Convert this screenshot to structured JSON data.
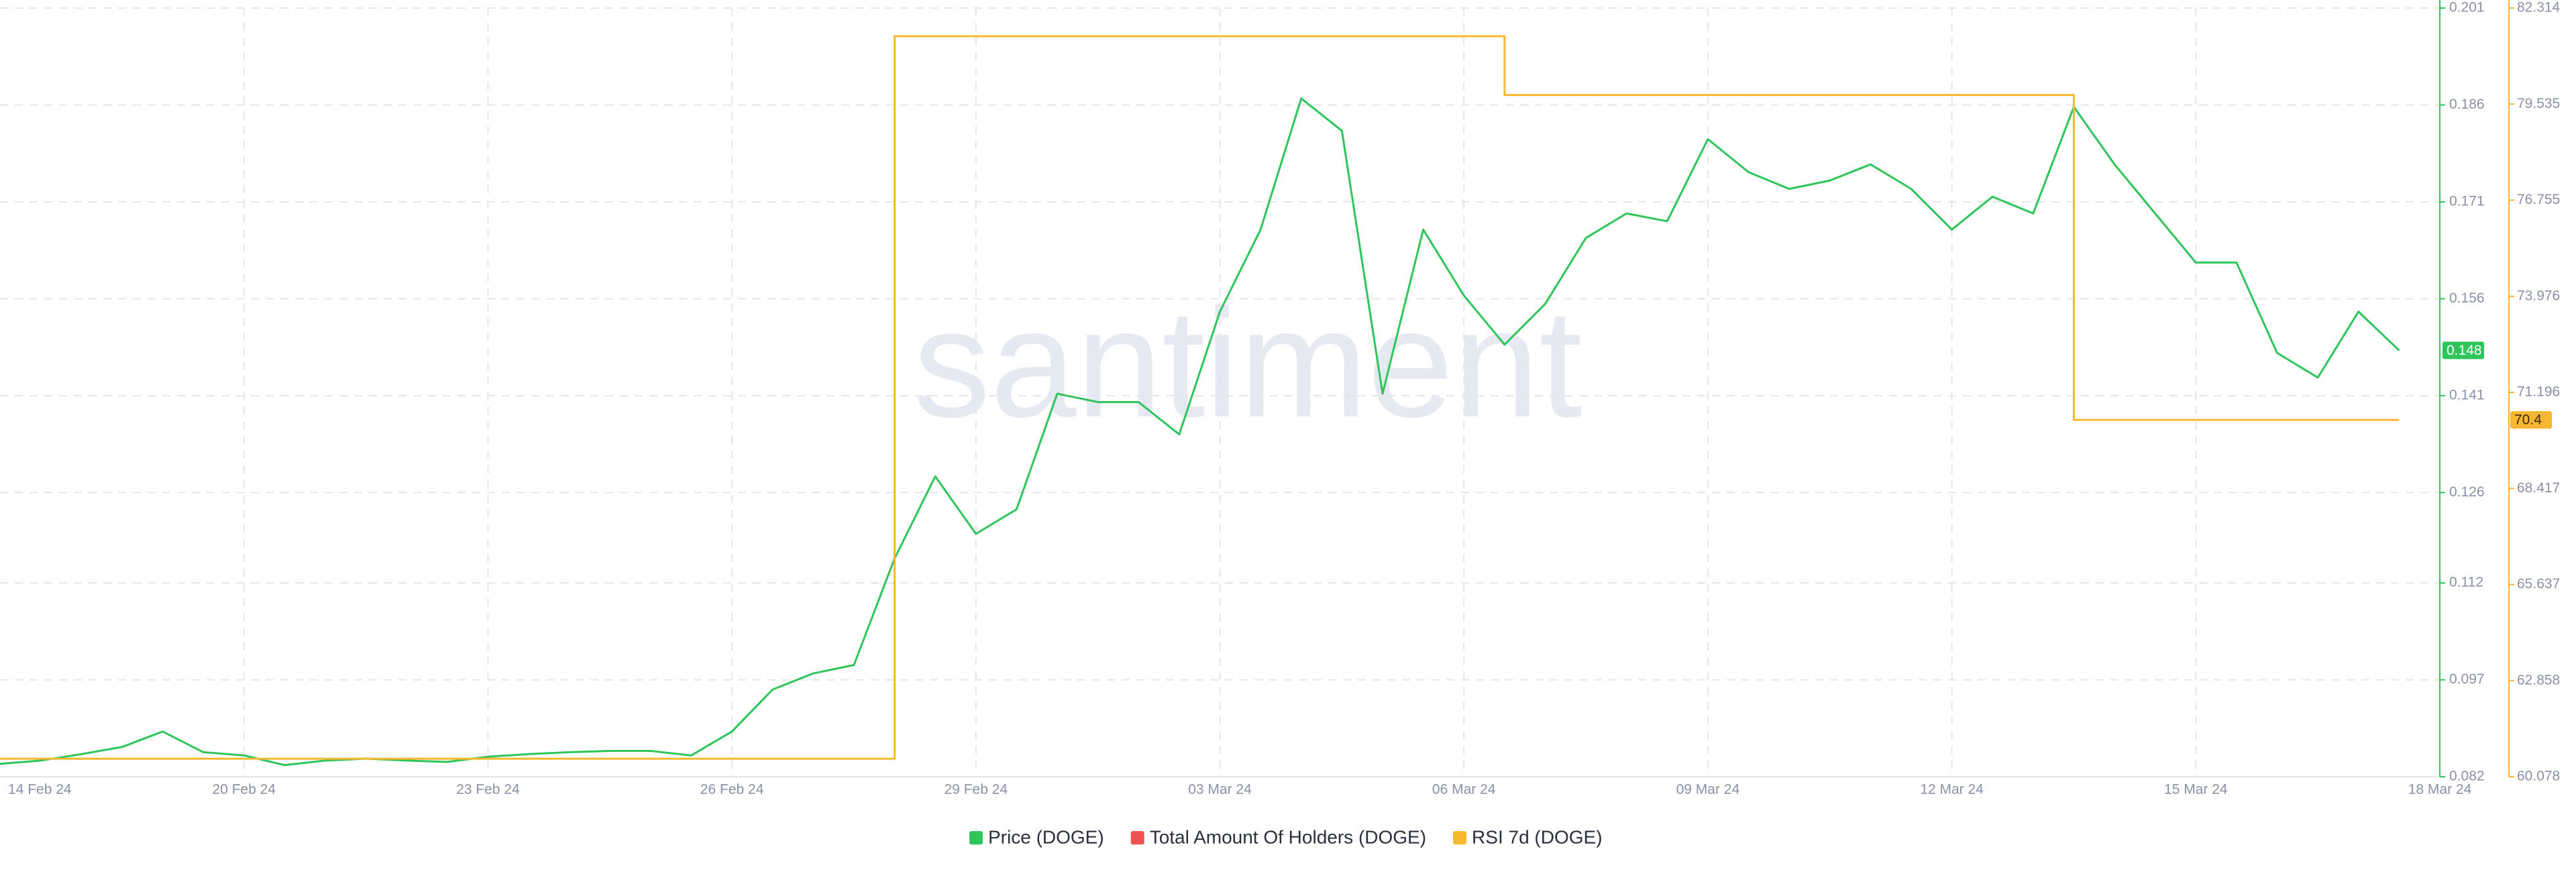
{
  "chart_data": {
    "type": "line",
    "watermark": "santiment",
    "categories": [
      "14 Feb 24",
      null,
      null,
      null,
      null,
      null,
      "20 Feb 24",
      null,
      null,
      null,
      null,
      null,
      "23 Feb 24",
      null,
      null,
      null,
      null,
      null,
      "26 Feb 24",
      null,
      null,
      null,
      null,
      null,
      "29 Feb 24",
      null,
      null,
      null,
      null,
      null,
      "03 Mar 24",
      null,
      null,
      null,
      null,
      null,
      "06 Mar 24",
      null,
      null,
      null,
      null,
      null,
      "09 Mar 24",
      null,
      null,
      null,
      null,
      null,
      "12 Mar 24",
      null,
      null,
      null,
      null,
      null,
      "15 Mar 24",
      null,
      null,
      null,
      null,
      null,
      "18 Mar 24"
    ],
    "series": [
      {
        "name": "Price (DOGE)",
        "color": "#2ec55a",
        "axis": "y",
        "values": [
          0.084,
          0.0845,
          0.0855,
          0.0866,
          0.089,
          0.0858,
          0.0853,
          0.0838,
          0.0845,
          0.0848,
          0.0845,
          0.0843,
          0.0851,
          0.0855,
          0.0858,
          0.086,
          0.086,
          0.0853,
          0.089,
          0.0955,
          0.098,
          0.0993,
          0.1158,
          0.1285,
          0.1196,
          0.1234,
          0.1413,
          0.14,
          0.14,
          0.135,
          0.154,
          0.1667,
          0.187,
          0.182,
          0.1413,
          0.1667,
          0.1565,
          0.1489,
          0.1552,
          0.1654,
          0.1692,
          0.168,
          0.1807,
          0.1756,
          0.173,
          0.1743,
          0.1768,
          0.173,
          0.1667,
          0.1718,
          0.1692,
          0.1857,
          0.1768,
          0.1692,
          0.1616,
          0.1616,
          0.1476,
          0.1438,
          0.154,
          0.148,
          null
        ]
      },
      {
        "name": "Total Amount Of Holders (DOGE)",
        "color": "#ef5350",
        "axis": "y",
        "values": [
          null,
          null,
          null,
          null,
          null,
          null,
          null,
          null,
          null,
          null,
          null,
          null,
          null,
          null,
          null,
          null,
          null,
          null,
          null,
          null,
          null,
          null,
          null,
          null,
          null,
          null,
          null,
          null,
          null,
          null,
          null,
          null,
          null,
          null,
          null,
          null,
          null,
          null,
          null,
          null,
          null,
          null,
          null,
          null,
          null,
          null,
          null,
          null,
          null,
          null,
          null,
          null,
          null,
          null,
          null,
          null,
          null,
          null,
          null,
          null,
          null
        ]
      },
      {
        "name": "RSI 7d (DOGE)",
        "color": "#f7b731",
        "axis": "y2",
        "step": true,
        "values": [
          60.6,
          60.6,
          60.6,
          60.6,
          60.6,
          60.6,
          60.6,
          60.6,
          60.6,
          60.6,
          60.6,
          60.6,
          60.6,
          60.6,
          60.6,
          60.6,
          60.6,
          60.6,
          60.6,
          60.6,
          60.6,
          60.6,
          81.5,
          81.5,
          81.5,
          81.5,
          81.5,
          81.5,
          81.5,
          81.5,
          81.5,
          81.5,
          81.5,
          81.5,
          81.5,
          81.5,
          81.5,
          79.8,
          79.8,
          79.8,
          79.8,
          79.8,
          79.8,
          79.8,
          79.8,
          79.8,
          79.8,
          79.8,
          79.8,
          79.8,
          79.8,
          70.4,
          70.4,
          70.4,
          70.4,
          70.4,
          70.4,
          70.4,
          70.4,
          70.4,
          null
        ]
      }
    ],
    "ylim": [
      0.082,
      0.201
    ],
    "yticks": [
      0.082,
      0.097,
      0.112,
      0.126,
      0.141,
      0.156,
      0.171,
      0.186,
      0.201
    ],
    "y2lim": [
      60.078,
      82.314
    ],
    "y2ticks": [
      60.078,
      62.858,
      65.637,
      68.417,
      71.196,
      73.976,
      76.755,
      79.535,
      82.314
    ],
    "grid": true,
    "legend": "bottom"
  }
}
